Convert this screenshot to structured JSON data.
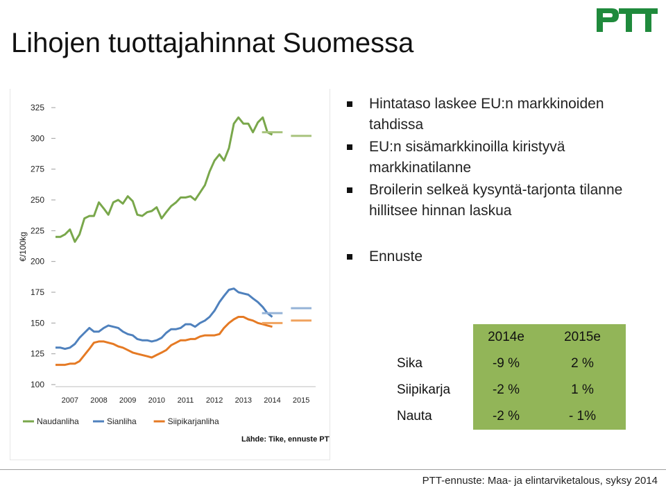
{
  "title": "Lihojen tuottajahinnat Suomessa",
  "logo": {
    "text": "PTT",
    "color": "#1f8a3c"
  },
  "bullets": [
    "Hintataso laskee EU:n markkinoiden tahdissa",
    "EU:n sisämarkkinoilla kiristyvä markkinatilanne",
    "Broilerin selkeä kysyntä-tarjonta tilanne hillitsee hinnan laskua",
    "Ennuste"
  ],
  "forecast_table": {
    "headers": [
      "",
      "2014e",
      "2015e"
    ],
    "rows": [
      {
        "label": "Sika",
        "v2014": "-9 %",
        "v2015": "2 %"
      },
      {
        "label": "Siipikarja",
        "v2014": "-2 %",
        "v2015": "1 %"
      },
      {
        "label": "Nauta",
        "v2014": "-2 %",
        "v2015": "- 1%"
      }
    ],
    "color": "#92b558"
  },
  "footer": "PTT-ennuste: Maa- ja elintarviketalous, syksy 2014",
  "chart_data": {
    "type": "line",
    "ylabel": "€/100kg",
    "ylim": [
      100,
      325
    ],
    "yticks": [
      100,
      125,
      150,
      175,
      200,
      225,
      250,
      275,
      300,
      325
    ],
    "xticks": [
      "2007",
      "2008",
      "2009",
      "2010",
      "2011",
      "2012",
      "2013",
      "2014",
      "2015"
    ],
    "xlim": [
      2007,
      2016
    ],
    "grid": false,
    "legend": "bottom",
    "source": "Lähde: Tike, ennuste PTT",
    "series": [
      {
        "name": "Naudanliha",
        "color": "#79a74b",
        "x": [
          2007.0,
          2007.17,
          2007.33,
          2007.5,
          2007.67,
          2007.83,
          2008.0,
          2008.17,
          2008.33,
          2008.5,
          2008.67,
          2008.83,
          2009.0,
          2009.17,
          2009.33,
          2009.5,
          2009.67,
          2009.83,
          2010.0,
          2010.17,
          2010.33,
          2010.5,
          2010.67,
          2010.83,
          2011.0,
          2011.17,
          2011.33,
          2011.5,
          2011.67,
          2011.83,
          2012.0,
          2012.17,
          2012.33,
          2012.5,
          2012.67,
          2012.83,
          2013.0,
          2013.17,
          2013.33,
          2013.5,
          2013.67,
          2013.83,
          2014.0,
          2014.17,
          2014.33,
          2014.5
        ],
        "values": [
          220,
          220,
          222,
          226,
          216,
          222,
          235,
          237,
          237,
          248,
          243,
          238,
          248,
          250,
          247,
          253,
          249,
          238,
          237,
          240,
          241,
          244,
          235,
          240,
          245,
          248,
          252,
          252,
          253,
          250,
          256,
          262,
          273,
          282,
          287,
          282,
          292,
          312,
          317,
          312,
          312,
          305,
          313,
          317,
          305,
          303
        ]
      },
      {
        "name": "Sianliha",
        "color": "#4f81bd",
        "x": [
          2007.0,
          2007.17,
          2007.33,
          2007.5,
          2007.67,
          2007.83,
          2008.0,
          2008.17,
          2008.33,
          2008.5,
          2008.67,
          2008.83,
          2009.0,
          2009.17,
          2009.33,
          2009.5,
          2009.67,
          2009.83,
          2010.0,
          2010.17,
          2010.33,
          2010.5,
          2010.67,
          2010.83,
          2011.0,
          2011.17,
          2011.33,
          2011.5,
          2011.67,
          2011.83,
          2012.0,
          2012.17,
          2012.33,
          2012.5,
          2012.67,
          2012.83,
          2013.0,
          2013.17,
          2013.33,
          2013.5,
          2013.67,
          2013.83,
          2014.0,
          2014.17,
          2014.33,
          2014.5
        ],
        "values": [
          130,
          130,
          129,
          130,
          133,
          138,
          142,
          146,
          143,
          143,
          146,
          148,
          147,
          146,
          143,
          141,
          140,
          137,
          136,
          136,
          135,
          136,
          138,
          142,
          145,
          145,
          146,
          149,
          149,
          147,
          150,
          152,
          155,
          160,
          167,
          172,
          177,
          178,
          175,
          174,
          173,
          170,
          167,
          163,
          158,
          155
        ]
      },
      {
        "name": "Siipikarjanliha",
        "color": "#e57a24",
        "x": [
          2007.0,
          2007.17,
          2007.33,
          2007.5,
          2007.67,
          2007.83,
          2008.0,
          2008.17,
          2008.33,
          2008.5,
          2008.67,
          2008.83,
          2009.0,
          2009.17,
          2009.33,
          2009.5,
          2009.67,
          2009.83,
          2010.0,
          2010.17,
          2010.33,
          2010.5,
          2010.67,
          2010.83,
          2011.0,
          2011.17,
          2011.33,
          2011.5,
          2011.67,
          2011.83,
          2012.0,
          2012.17,
          2012.33,
          2012.5,
          2012.67,
          2012.83,
          2013.0,
          2013.17,
          2013.33,
          2013.5,
          2013.67,
          2013.83,
          2014.0,
          2014.17,
          2014.33,
          2014.5
        ],
        "values": [
          116,
          116,
          116,
          117,
          117,
          119,
          124,
          129,
          134,
          135,
          135,
          134,
          133,
          131,
          130,
          128,
          126,
          125,
          124,
          123,
          122,
          124,
          126,
          128,
          132,
          134,
          136,
          136,
          137,
          137,
          139,
          140,
          140,
          140,
          141,
          146,
          150,
          153,
          155,
          155,
          153,
          152,
          150,
          149,
          148,
          147
        ]
      }
    ],
    "forecast": [
      {
        "series": "Naudanliha",
        "color": "#a9c47f",
        "x": [
          2014.0,
          2015.0
        ],
        "values": [
          305,
          305
        ]
      },
      {
        "series": "Naudanliha",
        "color": "#a9c47f",
        "x": [
          2015.0,
          2016.0
        ],
        "values": [
          302,
          302
        ]
      },
      {
        "series": "Sianliha",
        "color": "#95b3d7",
        "x": [
          2014.0,
          2015.0
        ],
        "values": [
          158,
          158
        ]
      },
      {
        "series": "Sianliha",
        "color": "#95b3d7",
        "x": [
          2015.0,
          2016.0
        ],
        "values": [
          162,
          162
        ]
      },
      {
        "series": "Siipikarjanliha",
        "color": "#f0a25e",
        "x": [
          2014.0,
          2015.0
        ],
        "values": [
          150,
          150
        ]
      },
      {
        "series": "Siipikarjanliha",
        "color": "#f0a25e",
        "x": [
          2015.0,
          2016.0
        ],
        "values": [
          152,
          152
        ]
      }
    ]
  }
}
